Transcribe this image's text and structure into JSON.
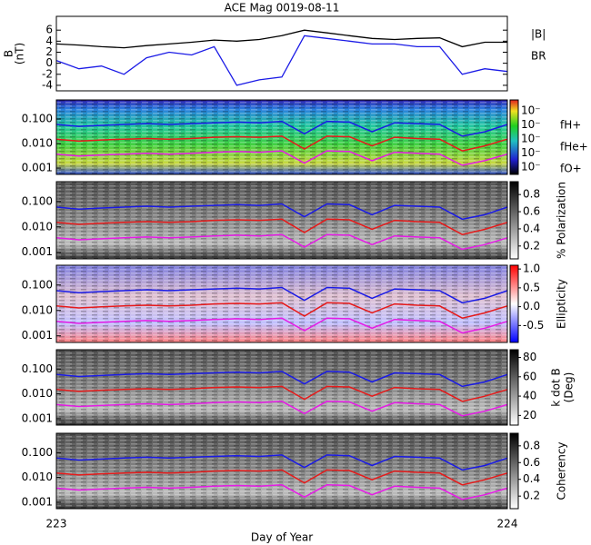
{
  "chart_data": [
    {
      "type": "line",
      "title": "ACE Mag 0019-08-11",
      "ylabel": "B",
      "yunit": "(nT)",
      "x": [
        223,
        223.05,
        223.1,
        223.15,
        223.2,
        223.25,
        223.3,
        223.35,
        223.4,
        223.45,
        223.5,
        223.55,
        223.6,
        223.65,
        223.7,
        223.75,
        223.8,
        223.85,
        223.9,
        223.95,
        224
      ],
      "xlim": [
        223,
        224
      ],
      "ylim": [
        -5,
        8.5
      ],
      "yticks": [
        -4,
        -2,
        0,
        2,
        4,
        6
      ],
      "series": [
        {
          "name": "|B|",
          "color": "#000000",
          "values": [
            3.5,
            3.3,
            3.0,
            2.8,
            3.2,
            3.5,
            3.8,
            4.2,
            4.0,
            4.3,
            5.0,
            6.0,
            5.5,
            5.0,
            4.5,
            4.3,
            4.5,
            4.6,
            3.0,
            3.8,
            3.8
          ]
        },
        {
          "name": "BR",
          "color": "#1a1ae6",
          "values": [
            0.5,
            -1.0,
            -0.5,
            -2.0,
            1.0,
            2.0,
            1.5,
            3.0,
            -4.0,
            -3.0,
            -2.5,
            5.0,
            4.5,
            4.0,
            3.5,
            3.5,
            3.0,
            3.0,
            -2.0,
            -1.0,
            -1.5
          ]
        }
      ]
    },
    {
      "type": "spectrogram",
      "log_y": true,
      "ylim": [
        0.00055,
        0.6
      ],
      "yticks": [
        {
          "value": 0.1,
          "label": "0.100"
        },
        {
          "value": 0.01,
          "label": "0.010"
        },
        0.001
      ],
      "colorbar": {
        "tick_labels": [
          "10⁻",
          "10⁻",
          "10⁻",
          "10⁻",
          "10⁻"
        ],
        "colors": "spectrum"
      },
      "series": [
        {
          "name": "fH+",
          "color": "#1a1ae6",
          "values": [
            0.06,
            0.05,
            0.055,
            0.06,
            0.065,
            0.06,
            0.065,
            0.07,
            0.075,
            0.07,
            0.08,
            0.025,
            0.08,
            0.075,
            0.03,
            0.07,
            0.065,
            0.06,
            0.02,
            0.03,
            0.06
          ]
        },
        {
          "name": "fHe+",
          "color": "#e61a1a",
          "values": [
            0.015,
            0.0125,
            0.014,
            0.015,
            0.016,
            0.015,
            0.016,
            0.018,
            0.019,
            0.018,
            0.02,
            0.006,
            0.02,
            0.019,
            0.008,
            0.018,
            0.016,
            0.015,
            0.005,
            0.008,
            0.015
          ]
        },
        {
          "name": "fO+",
          "color": "#e61ae6",
          "values": [
            0.0037,
            0.0031,
            0.0034,
            0.0037,
            0.004,
            0.0037,
            0.004,
            0.0044,
            0.0047,
            0.0044,
            0.005,
            0.0016,
            0.005,
            0.0047,
            0.002,
            0.0044,
            0.004,
            0.0037,
            0.0013,
            0.002,
            0.0037
          ]
        }
      ]
    },
    {
      "type": "spectrogram",
      "colorbar": {
        "label": "% Polarization",
        "lim": [
          0.05,
          0.95
        ],
        "ticks": [
          0.2,
          0.4,
          0.6,
          0.8
        ],
        "colors": "gray"
      }
    },
    {
      "type": "spectrogram",
      "colorbar": {
        "label": "Ellipticity",
        "lim": [
          -0.95,
          1.1
        ],
        "ticks": [
          -0.5,
          {
            "value": 0,
            "label": "0.0"
          },
          0.5,
          {
            "value": 1,
            "label": "1.0"
          }
        ],
        "colors": "redblue"
      }
    },
    {
      "type": "spectrogram",
      "colorbar": {
        "label": "k dot B",
        "unit": "(Deg)",
        "lim": [
          10,
          88
        ],
        "ticks": [
          20,
          40,
          60,
          80
        ],
        "colors": "gray"
      }
    },
    {
      "type": "spectrogram",
      "colorbar": {
        "label": "Coherency",
        "lim": [
          0.05,
          0.95
        ],
        "ticks": [
          0.2,
          0.4,
          0.6,
          0.8
        ],
        "colors": "gray"
      },
      "xticks": [
        223,
        224
      ],
      "xlabel": "Day of Year"
    }
  ]
}
